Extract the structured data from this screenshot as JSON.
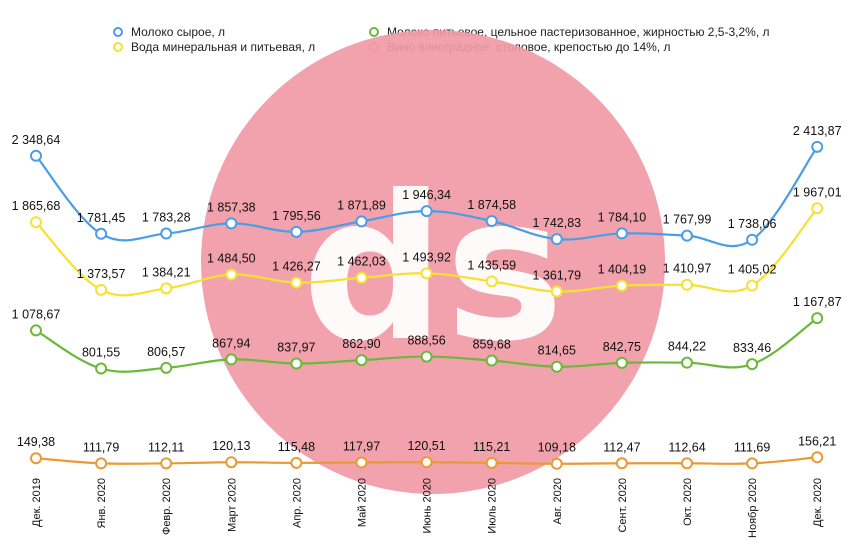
{
  "chart_data": {
    "type": "line",
    "categories": [
      "Дек. 2019",
      "Янв. 2020",
      "Февр. 2020",
      "Март 2020",
      "Апр. 2020",
      "Май 2020",
      "Июнь 2020",
      "Июль 2020",
      "Авг. 2020",
      "Сент. 2020",
      "Окт. 2020",
      "Ноябр 2020",
      "Дек. 2020"
    ],
    "series": [
      {
        "name": "Молоко сырое, л",
        "color": "#4a9ee6",
        "values": [
          2348.64,
          1781.45,
          1783.28,
          1857.38,
          1795.56,
          1871.89,
          1946.34,
          1874.58,
          1742.83,
          1784.1,
          1767.99,
          1738.06,
          2413.87
        ],
        "labels": [
          "2 348,64",
          "1 781,45",
          "1 783,28",
          "1 857,38",
          "1 795,56",
          "1 871,89",
          "1 946,34",
          "1 874,58",
          "1 742,83",
          "1 784,10",
          "1 767,99",
          "1 738,06",
          "2 413,87"
        ]
      },
      {
        "name": "Вода минеральная и питьевая, л",
        "color": "#f5e12e",
        "values": [
          1865.68,
          1373.57,
          1384.21,
          1484.5,
          1426.27,
          1462.03,
          1493.92,
          1435.59,
          1361.79,
          1404.19,
          1410.97,
          1405.02,
          1967.01
        ],
        "labels": [
          "1 865,68",
          "1 373,57",
          "1 384,21",
          "1 484,50",
          "1 426,27",
          "1 462,03",
          "1 493,92",
          "1 435,59",
          "1 361,79",
          "1 404,19",
          "1 410,97",
          "1 405,02",
          "1 967,01"
        ]
      },
      {
        "name": "Молоко питьевое, цельное пастеризованное, жирностью 2,5-3,2%, л",
        "color": "#6bb93a",
        "values": [
          1078.67,
          801.55,
          806.57,
          867.94,
          837.97,
          862.9,
          888.56,
          859.68,
          814.65,
          842.75,
          844.22,
          833.46,
          1167.87
        ],
        "labels": [
          "1 078,67",
          "801,55",
          "806,57",
          "867,94",
          "837,97",
          "862,90",
          "888,56",
          "859,68",
          "814,65",
          "842,75",
          "844,22",
          "833,46",
          "1 167,87"
        ]
      },
      {
        "name": "Вино виноградное, столовое, крепостью до 14%, л",
        "color": "#ea9a35",
        "values": [
          149.38,
          111.79,
          112.11,
          120.13,
          115.48,
          117.97,
          120.51,
          115.21,
          109.18,
          112.47,
          112.64,
          111.69,
          156.21
        ],
        "labels": [
          "149,38",
          "111,79",
          "112,11",
          "120,13",
          "115,48",
          "117,97",
          "120,51",
          "115,21",
          "109,18",
          "112,47",
          "112,64",
          "111,69",
          "156,21"
        ]
      }
    ],
    "legend_position": "top",
    "grid": false,
    "axes": {
      "y": "hidden",
      "x": "category labels rotated 90°"
    },
    "watermark": {
      "shape": "circle",
      "color": "#f19aa6",
      "letters": "ds"
    }
  }
}
